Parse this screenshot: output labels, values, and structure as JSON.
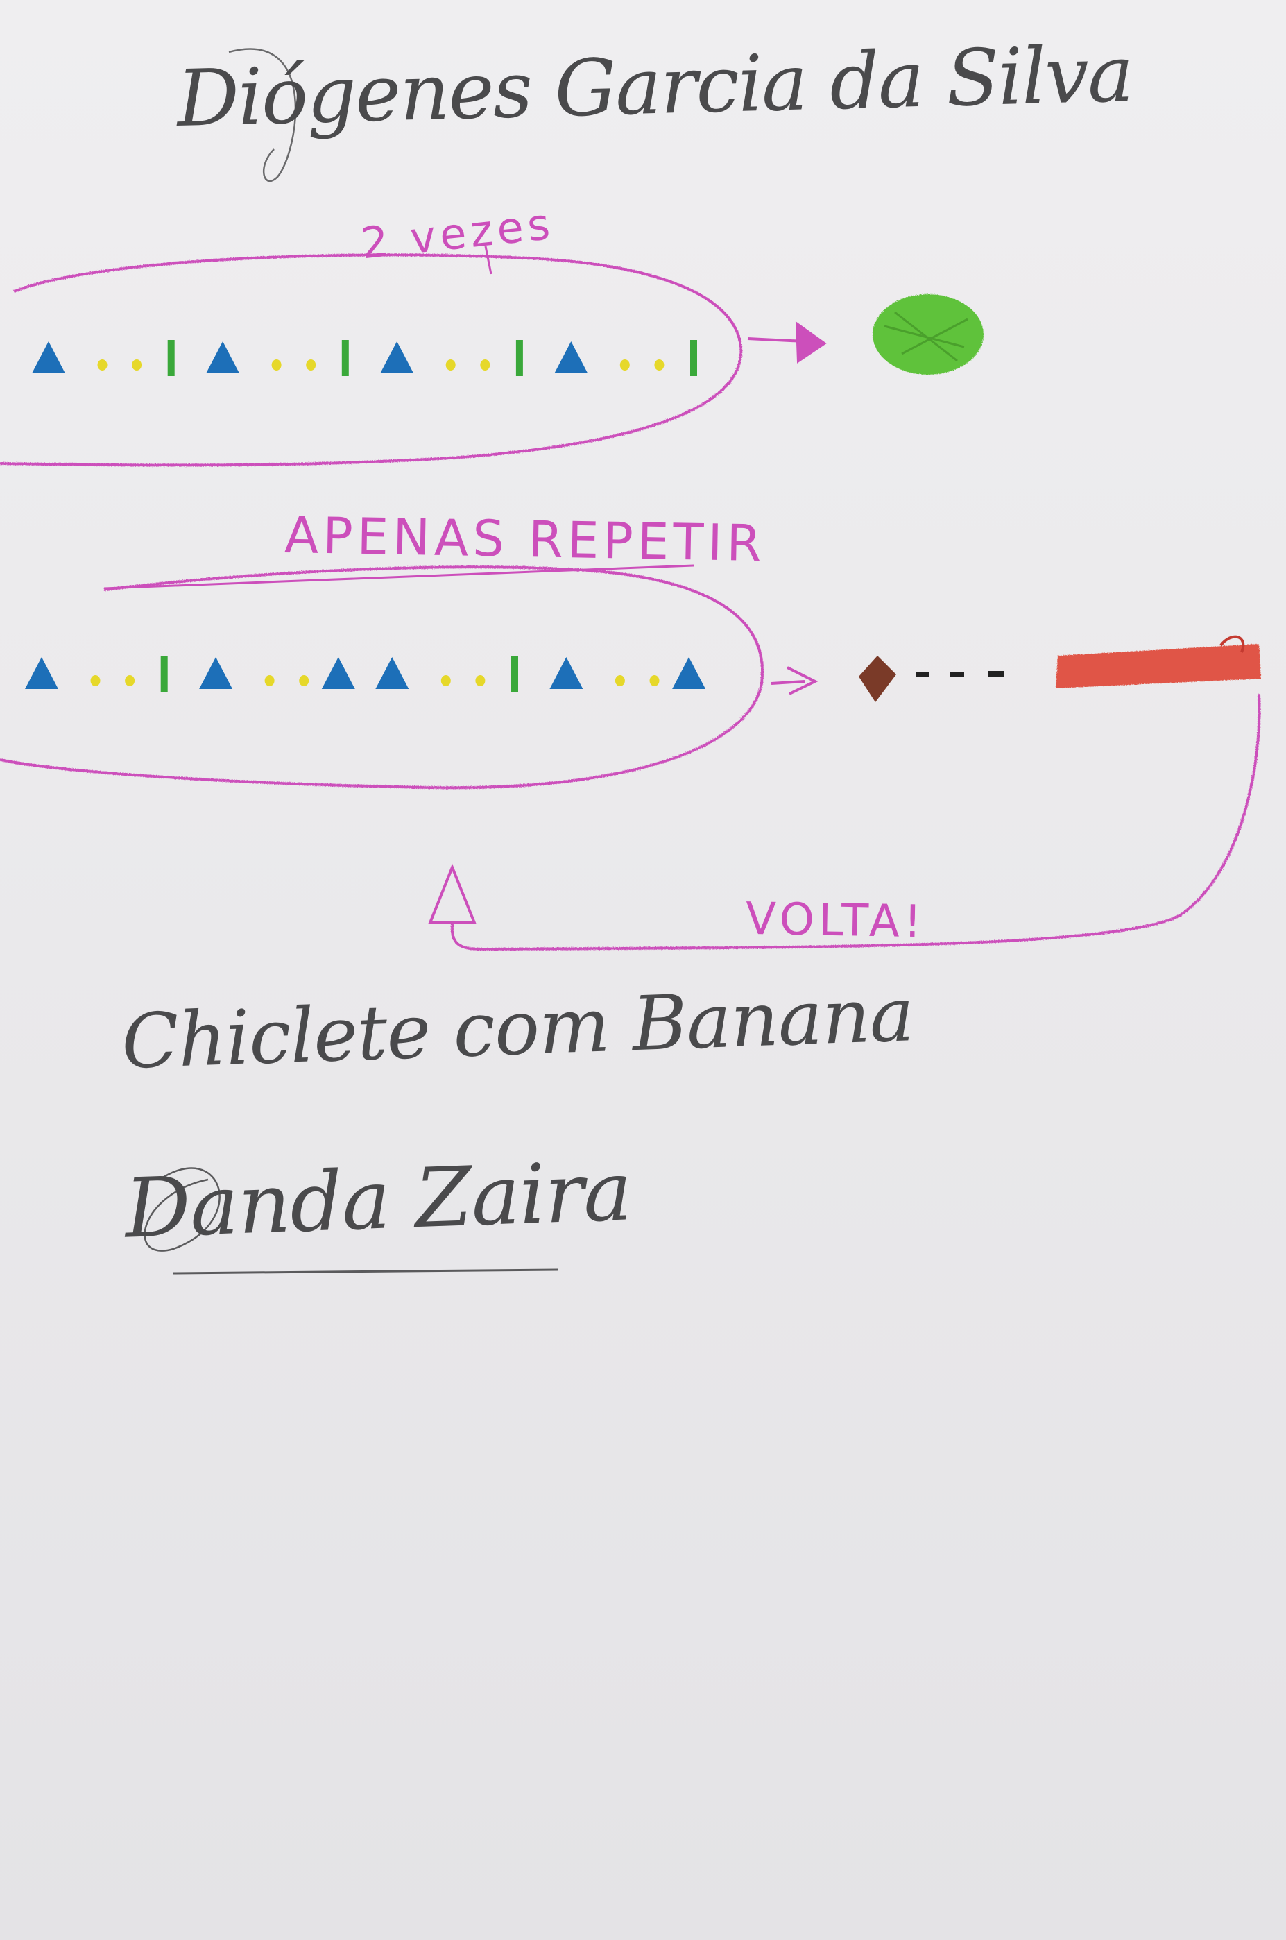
{
  "handwriting": {
    "title": "Diógenes Garcia da Silva",
    "line1": "Chiclete com Banana",
    "line2": "Danda Zaira"
  },
  "labels": {
    "loop1_label": "2 vezes",
    "loop2_label": "APENAS REPETIR",
    "return_label": "VOLTA!"
  },
  "colors": {
    "paper": "#ebeaec",
    "pencil": "#4a4a4c",
    "magenta_crayon": "#cc4fbb",
    "blue_triangle": "#1d6fb8",
    "yellow_dot": "#e6d82a",
    "green_bar": "#3aa83a",
    "green_circle": "#5ec23a",
    "brown_diamond": "#7a3a28",
    "red_bar": "#e05546",
    "dash": "#222222"
  },
  "sequences": {
    "row1": [
      "triangle",
      "dot",
      "dot",
      "bar",
      "triangle",
      "dot",
      "dot",
      "bar",
      "triangle",
      "dot",
      "dot",
      "bar",
      "triangle",
      "dot",
      "dot",
      "bar"
    ],
    "row2": [
      "triangle",
      "dot",
      "dot",
      "bar",
      "triangle",
      "dot",
      "dot",
      "triangle",
      "triangle",
      "dot",
      "dot",
      "bar",
      "triangle",
      "dot",
      "dot",
      "triangle"
    ]
  },
  "icons": {
    "row1_result": "green-circle-icon",
    "row2_result": "brown-diamond-icon",
    "row2_end": "red-bar-icon"
  }
}
